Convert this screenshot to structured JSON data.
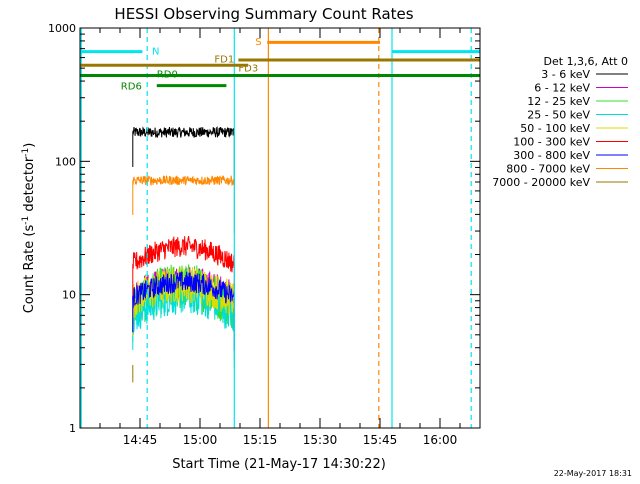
{
  "chart_data": {
    "type": "line",
    "title": "HESSI Observing Summary Count Rates",
    "xlabel": "Start Time (21-May-17 14:30:22)",
    "ylabel_prefix": "Count Rate (s",
    "ylabel_mid": " detector",
    "ylabel_suffix": ")",
    "ylabel_exp": "-1",
    "yscale": "log",
    "ylim": [
      1,
      1000
    ],
    "y_ticks": [
      {
        "value": 1,
        "label": "1"
      },
      {
        "value": 10,
        "label": "10"
      },
      {
        "value": 100,
        "label": "100"
      },
      {
        "value": 1000,
        "label": "1000"
      }
    ],
    "xlim_minutes": [
      14.5,
      16.1667
    ],
    "x_ticks": [
      {
        "t": 14.75,
        "label": "14:45"
      },
      {
        "t": 15.0,
        "label": "15:00"
      },
      {
        "t": 15.25,
        "label": "15:15"
      },
      {
        "t": 15.5,
        "label": "15:30"
      },
      {
        "t": 15.75,
        "label": "15:45"
      },
      {
        "t": 16.0,
        "label": "16:00"
      }
    ],
    "legend_title": "Det 1,3,6, Att 0",
    "legend_placement": "right",
    "date_stamp": "22-May-2017 18:31",
    "series": [
      {
        "name": "3 - 6 keV",
        "color": "#000000",
        "start": 14.72,
        "end": 15.143,
        "level": 165,
        "noise": 0.04,
        "shape": "flat"
      },
      {
        "name": "6 - 12 keV",
        "color": "#cc00cc",
        "start": 14.72,
        "end": 15.143,
        "level": 9.5,
        "noise": 0.12,
        "shape": "hump",
        "peak": 12.5
      },
      {
        "name": "12 - 25 keV",
        "color": "#33dd33",
        "start": 14.72,
        "end": 15.143,
        "level": 8.0,
        "noise": 0.18,
        "shape": "hump",
        "peak": 11.5
      },
      {
        "name": "25 - 50 keV",
        "color": "#00dddd",
        "start": 14.72,
        "end": 15.143,
        "level": 7.0,
        "noise": 0.15,
        "shape": "hump",
        "peak": 10.0
      },
      {
        "name": "50 - 100 keV",
        "color": "#dddd00",
        "start": 14.72,
        "end": 15.143,
        "level": 9.0,
        "noise": 0.14,
        "shape": "hump",
        "peak": 12.0
      },
      {
        "name": "100 - 300 keV",
        "color": "#ff0000",
        "start": 14.72,
        "end": 15.143,
        "level": 17,
        "noise": 0.08,
        "shape": "hump",
        "peak": 23
      },
      {
        "name": "300 - 800 keV",
        "color": "#0000ff",
        "start": 14.72,
        "end": 15.143,
        "level": 9.5,
        "noise": 0.08,
        "shape": "hump",
        "peak": 12.5
      },
      {
        "name": "800 - 7000 keV",
        "color": "#ff8800",
        "start": 14.72,
        "end": 15.143,
        "level": 72,
        "noise": 0.035,
        "shape": "flat"
      },
      {
        "name": "7000 - 20000 keV",
        "color": "#997700",
        "start": 14.72,
        "end": 15.143,
        "level": 2.2,
        "noise": 0.1,
        "shape": "none"
      }
    ],
    "segments": [
      {
        "label": "N",
        "color": "#00e5ee",
        "t1": 14.5,
        "t2": 14.76,
        "y": 665,
        "label_t": 14.8,
        "label_y": 680
      },
      {
        "label": "",
        "color": "#00e5ee",
        "t1": 15.8,
        "t2": 16.1667,
        "y": 665,
        "label_t": null,
        "label_y": null
      },
      {
        "label": "S",
        "color": "#ff8800",
        "t1": 15.28,
        "t2": 15.75,
        "y": 780,
        "label_t": 15.23,
        "label_y": 800
      },
      {
        "label": "FD1",
        "color": "#997700",
        "t1": 15.16,
        "t2": 16.1667,
        "y": 575,
        "label_t": 15.06,
        "label_y": 590
      },
      {
        "label": "FD3",
        "color": "#997700",
        "t1": 14.5,
        "t2": 15.2,
        "y": 525,
        "label_t": 15.16,
        "label_y": 505
      },
      {
        "label": "RD0",
        "color": "#008800",
        "t1": 14.5,
        "t2": 16.1667,
        "y": 440,
        "label_t": 14.82,
        "label_y": 455
      },
      {
        "label": "RD6",
        "color": "#008800",
        "t1": 14.82,
        "t2": 15.11,
        "y": 370,
        "label_t": 14.67,
        "label_y": 372
      }
    ],
    "vlines": [
      {
        "t": 14.505,
        "color": "#00e5ee",
        "dash": false
      },
      {
        "t": 14.78,
        "color": "#00e5ee",
        "dash": true
      },
      {
        "t": 15.143,
        "color": "#00e5ee",
        "dash": false
      },
      {
        "t": 15.285,
        "color": "#ff8800",
        "dash": false
      },
      {
        "t": 15.745,
        "color": "#ff8800",
        "dash": true
      },
      {
        "t": 15.8,
        "color": "#00e5ee",
        "dash": false
      },
      {
        "t": 16.13,
        "color": "#00e5ee",
        "dash": true
      }
    ]
  }
}
